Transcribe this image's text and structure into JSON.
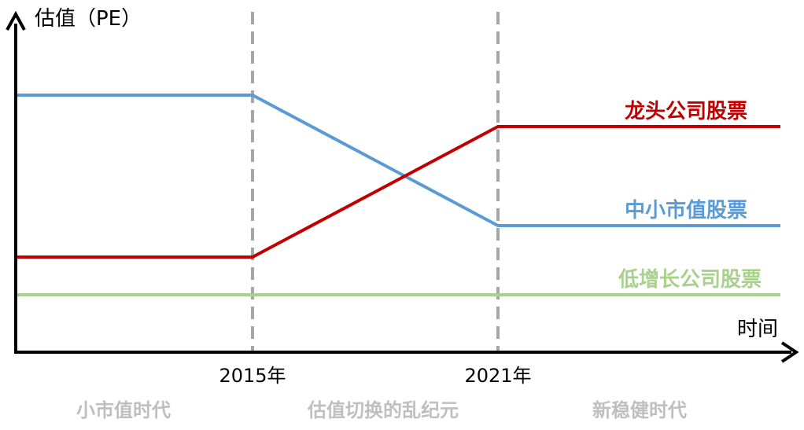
{
  "chart_data": {
    "type": "line",
    "ylabel": "估值（PE）",
    "xlabel": "时间",
    "x_ticks": [
      "2015年",
      "2021年"
    ],
    "periods": [
      "小市值时代",
      "估值切换的乱纪元",
      "新稳健时代"
    ],
    "series": [
      {
        "name": "龙头公司股票",
        "color": "#c00000",
        "values": [
          "低",
          "低",
          "高",
          "高"
        ]
      },
      {
        "name": "中小市值股票",
        "color": "#5b9bd5",
        "values": [
          "高",
          "高",
          "中",
          "中"
        ]
      },
      {
        "name": "低增长公司股票",
        "color": "#a9d18e",
        "values": [
          "最低",
          "最低",
          "最低",
          "最低"
        ]
      }
    ]
  }
}
